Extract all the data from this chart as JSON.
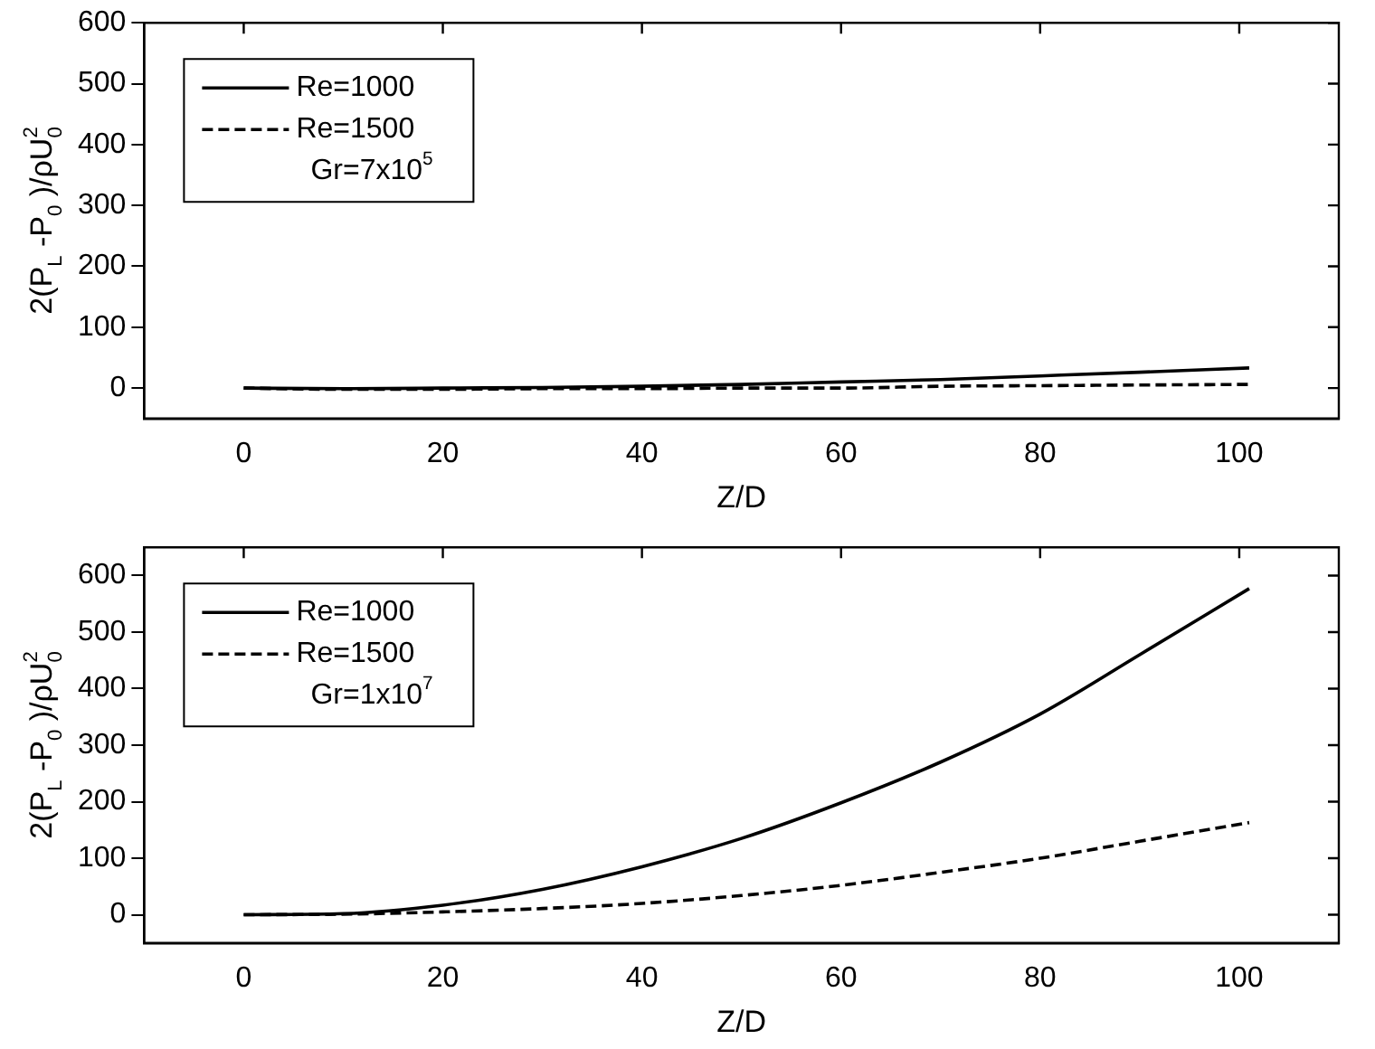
{
  "chart_data": [
    {
      "type": "line",
      "xlabel": "Z/D",
      "ylabel": "2(P$_{L}$ -P$_{0}$ )/ρU$_{0}$$^{2}$",
      "legend": "top left",
      "grid": false,
      "marker": "none",
      "xlim": [
        -10,
        110
      ],
      "xticks": [
        0,
        20,
        40,
        60,
        80,
        100
      ],
      "ylim": [
        -50,
        600
      ],
      "yticks": [
        0,
        100,
        200,
        300,
        400,
        500,
        600
      ],
      "annotations": [
        "Gr=7x10$^{5}$"
      ],
      "series": [
        {
          "name": "Re=1000",
          "color": "#000000",
          "line_style": "solid",
          "x": [
            0,
            10,
            20,
            30,
            40,
            50,
            60,
            70,
            80,
            90,
            101
          ],
          "values": [
            0,
            -1,
            0,
            1,
            3,
            6,
            10,
            14,
            20,
            26,
            33
          ]
        },
        {
          "name": "Re=1500",
          "color": "#000000",
          "line_style": "dashed",
          "x": [
            0,
            10,
            20,
            30,
            40,
            50,
            60,
            70,
            80,
            90,
            101
          ],
          "values": [
            0,
            -2,
            -2,
            -1,
            -1,
            0,
            0,
            3,
            4,
            5,
            6
          ]
        }
      ]
    },
    {
      "type": "line",
      "xlabel": "Z/D",
      "ylabel": "2(P$_{L}$ -P$_{0}$ )/ρU$_{0}$$^{2}$",
      "legend": "top left",
      "grid": false,
      "marker": "none",
      "xlim": [
        -10,
        110
      ],
      "xticks": [
        0,
        20,
        40,
        60,
        80,
        100
      ],
      "ylim": [
        -50,
        650
      ],
      "yticks": [
        0,
        100,
        200,
        300,
        400,
        500,
        600
      ],
      "annotations": [
        "Gr=1x10$^{7}$"
      ],
      "series": [
        {
          "name": "Re=1000",
          "color": "#000000",
          "line_style": "solid",
          "x": [
            0,
            10,
            20,
            30,
            40,
            50,
            60,
            70,
            80,
            90,
            101
          ],
          "values": [
            0,
            2,
            17,
            45,
            85,
            135,
            198,
            270,
            355,
            460,
            577
          ]
        },
        {
          "name": "Re=1500",
          "color": "#000000",
          "line_style": "dashed",
          "x": [
            0,
            10,
            20,
            30,
            40,
            50,
            60,
            70,
            80,
            90,
            101
          ],
          "values": [
            0,
            1,
            5,
            11,
            20,
            34,
            52,
            75,
            100,
            130,
            163
          ]
        }
      ]
    }
  ]
}
